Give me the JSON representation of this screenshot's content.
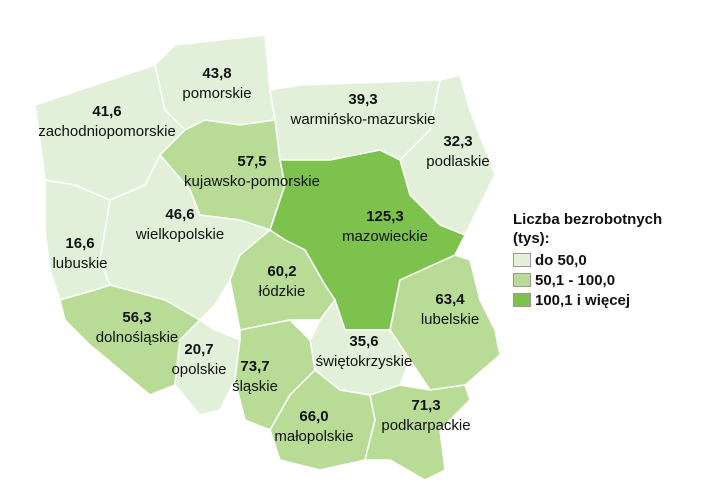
{
  "map": {
    "regions": [
      {
        "name": "zachodniopomorskie",
        "value": 41.6,
        "value_label": "41,6",
        "color": "#e2f0d9"
      },
      {
        "name": "pomorskie",
        "value": 43.8,
        "value_label": "43,8",
        "color": "#e2f0d9"
      },
      {
        "name": "warmińsko-mazurskie",
        "value": 39.3,
        "value_label": "39,3",
        "color": "#e2f0d9"
      },
      {
        "name": "podlaskie",
        "value": 32.3,
        "value_label": "32,3",
        "color": "#e2f0d9"
      },
      {
        "name": "kujawsko-pomorskie",
        "value": 57.5,
        "value_label": "57,5",
        "color": "#b8dc96"
      },
      {
        "name": "mazowieckie",
        "value": 125.3,
        "value_label": "125,3",
        "color": "#7dc24d"
      },
      {
        "name": "wielkopolskie",
        "value": 46.6,
        "value_label": "46,6",
        "color": "#e2f0d9"
      },
      {
        "name": "lubuskie",
        "value": 16.6,
        "value_label": "16,6",
        "color": "#e2f0d9"
      },
      {
        "name": "dolnośląskie",
        "value": 56.3,
        "value_label": "56,3",
        "color": "#b8dc96"
      },
      {
        "name": "opolskie",
        "value": 20.7,
        "value_label": "20,7",
        "color": "#e2f0d9"
      },
      {
        "name": "łódzkie",
        "value": 60.2,
        "value_label": "60,2",
        "color": "#b8dc96"
      },
      {
        "name": "lubelskie",
        "value": 63.4,
        "value_label": "63,4",
        "color": "#b8dc96"
      },
      {
        "name": "świętokrzyskie",
        "value": 35.6,
        "value_label": "35,6",
        "color": "#e2f0d9"
      },
      {
        "name": "śląskie",
        "value": 73.7,
        "value_label": "73,7",
        "color": "#b8dc96"
      },
      {
        "name": "małopolskie",
        "value": 66.0,
        "value_label": "66,0",
        "color": "#b8dc96"
      },
      {
        "name": "podkarpackie",
        "value": 71.3,
        "value_label": "71,3",
        "color": "#b8dc96"
      }
    ],
    "legend": {
      "title": "Liczba bezrobotnych (tys):",
      "items": [
        {
          "label": "do 50,0",
          "color": "#e2f0d9"
        },
        {
          "label": "50,1 - 100,0",
          "color": "#b8dc96"
        },
        {
          "label": "100,1 i więcej",
          "color": "#7dc24d"
        }
      ]
    }
  }
}
